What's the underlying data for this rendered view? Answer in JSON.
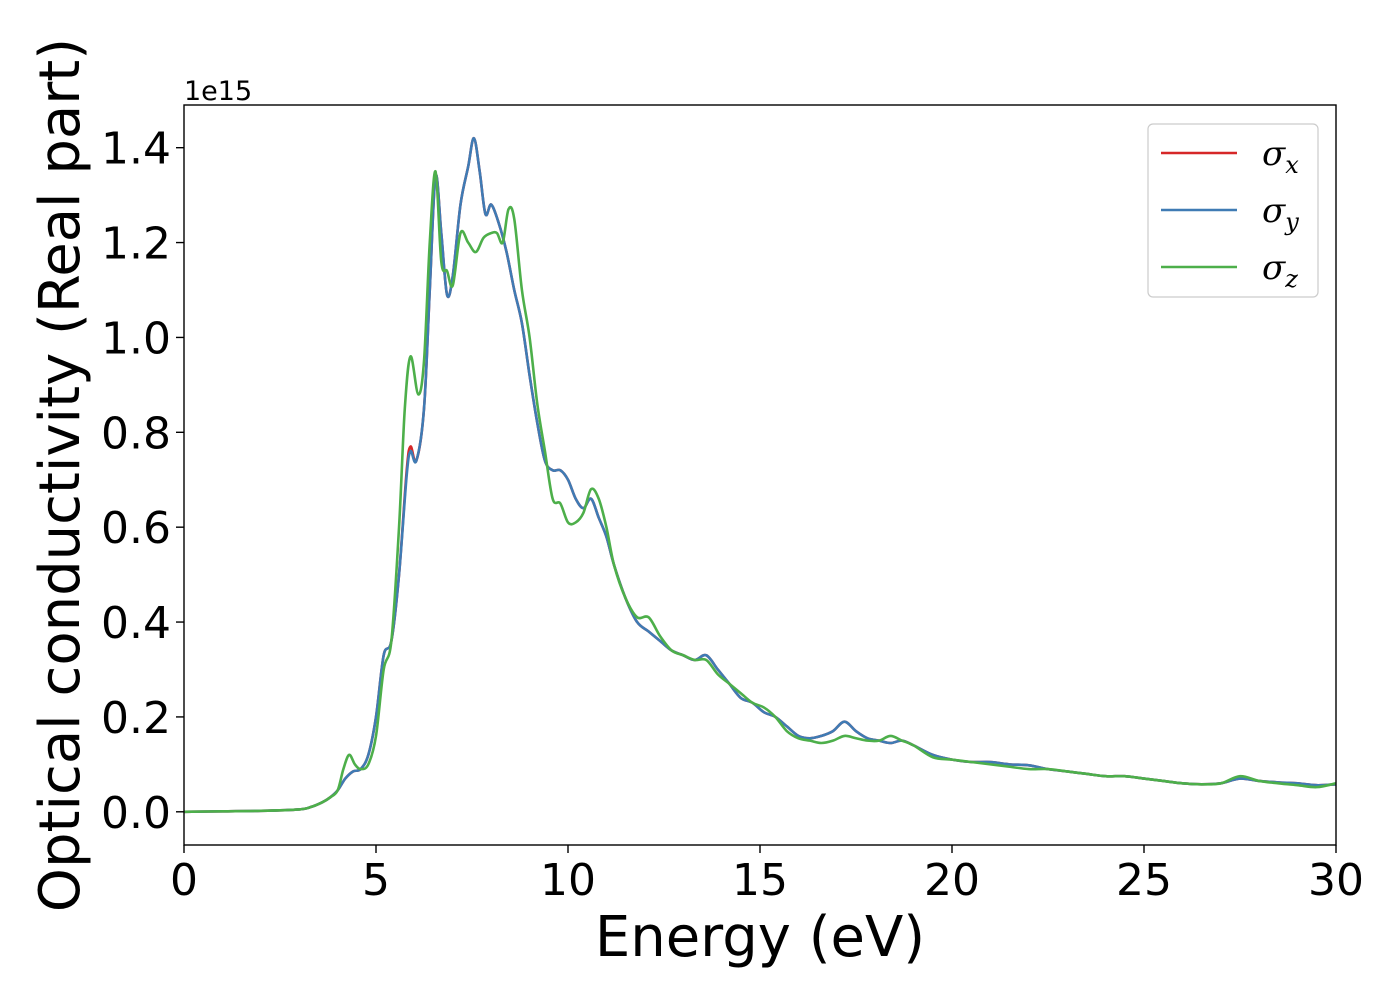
{
  "chart_data": {
    "type": "line",
    "xlabel": "Energy (eV)",
    "ylabel": "Optical conductivity (Real part)",
    "y_offset_label": "1e15",
    "xlim": [
      0,
      30
    ],
    "ylim": [
      -0.07,
      1.49
    ],
    "xticks": [
      0,
      5,
      10,
      15,
      20,
      25,
      30
    ],
    "yticks": [
      0.0,
      0.2,
      0.4,
      0.6,
      0.8,
      1.0,
      1.2,
      1.4
    ],
    "ytick_labels": [
      "0.0",
      "0.2",
      "0.4",
      "0.6",
      "0.8",
      "1.0",
      "1.2",
      "1.4"
    ],
    "grid": false,
    "legend_position": "top-right",
    "series": [
      {
        "name": "σx",
        "legend_main": "σ",
        "legend_sub": "x",
        "color": "#d62728",
        "x": [
          0,
          1,
          2,
          3,
          3.3,
          3.6,
          3.8,
          4.0,
          4.2,
          4.4,
          4.6,
          4.8,
          5.0,
          5.2,
          5.4,
          5.6,
          5.8,
          5.9,
          6.05,
          6.25,
          6.4,
          6.55,
          6.7,
          6.85,
          7.0,
          7.2,
          7.4,
          7.55,
          7.7,
          7.85,
          8.0,
          8.2,
          8.4,
          8.6,
          8.8,
          9.0,
          9.2,
          9.4,
          9.6,
          9.8,
          10.0,
          10.2,
          10.4,
          10.6,
          10.8,
          11.0,
          11.2,
          11.5,
          11.8,
          12.1,
          12.4,
          12.7,
          13.0,
          13.3,
          13.6,
          13.9,
          14.2,
          14.5,
          14.8,
          15.1,
          15.4,
          15.7,
          16.0,
          16.3,
          16.6,
          16.9,
          17.2,
          17.5,
          17.8,
          18.1,
          18.4,
          18.7,
          19.0,
          19.5,
          20.0,
          20.5,
          21.0,
          21.5,
          22.0,
          22.5,
          23.0,
          23.5,
          24.0,
          24.5,
          25.0,
          25.5,
          26.0,
          26.5,
          27.0,
          27.5,
          28.0,
          28.5,
          29.0,
          29.5,
          30.0
        ],
        "y": [
          0,
          0.001,
          0.002,
          0.005,
          0.01,
          0.02,
          0.03,
          0.045,
          0.07,
          0.085,
          0.09,
          0.12,
          0.2,
          0.33,
          0.36,
          0.5,
          0.72,
          0.77,
          0.74,
          0.85,
          1.1,
          1.34,
          1.22,
          1.09,
          1.13,
          1.28,
          1.36,
          1.42,
          1.35,
          1.26,
          1.28,
          1.24,
          1.18,
          1.1,
          1.03,
          0.92,
          0.82,
          0.74,
          0.72,
          0.72,
          0.7,
          0.66,
          0.64,
          0.66,
          0.62,
          0.58,
          0.52,
          0.45,
          0.4,
          0.38,
          0.36,
          0.34,
          0.33,
          0.32,
          0.33,
          0.3,
          0.27,
          0.24,
          0.23,
          0.21,
          0.2,
          0.18,
          0.16,
          0.155,
          0.16,
          0.17,
          0.19,
          0.17,
          0.155,
          0.15,
          0.145,
          0.15,
          0.14,
          0.12,
          0.11,
          0.105,
          0.105,
          0.1,
          0.098,
          0.09,
          0.085,
          0.08,
          0.075,
          0.075,
          0.07,
          0.065,
          0.06,
          0.058,
          0.06,
          0.07,
          0.065,
          0.062,
          0.06,
          0.056,
          0.058
        ]
      },
      {
        "name": "σy",
        "legend_main": "σ",
        "legend_sub": "y",
        "color": "#3f7bb4",
        "x": [
          0,
          1,
          2,
          3,
          3.3,
          3.6,
          3.8,
          4.0,
          4.2,
          4.4,
          4.6,
          4.8,
          5.0,
          5.2,
          5.4,
          5.6,
          5.8,
          5.9,
          6.05,
          6.25,
          6.4,
          6.55,
          6.7,
          6.85,
          7.0,
          7.2,
          7.4,
          7.55,
          7.7,
          7.85,
          8.0,
          8.2,
          8.4,
          8.6,
          8.8,
          9.0,
          9.2,
          9.4,
          9.6,
          9.8,
          10.0,
          10.2,
          10.4,
          10.6,
          10.8,
          11.0,
          11.2,
          11.5,
          11.8,
          12.1,
          12.4,
          12.7,
          13.0,
          13.3,
          13.6,
          13.9,
          14.2,
          14.5,
          14.8,
          15.1,
          15.4,
          15.7,
          16.0,
          16.3,
          16.6,
          16.9,
          17.2,
          17.5,
          17.8,
          18.1,
          18.4,
          18.7,
          19.0,
          19.5,
          20.0,
          20.5,
          21.0,
          21.5,
          22.0,
          22.5,
          23.0,
          23.5,
          24.0,
          24.5,
          25.0,
          25.5,
          26.0,
          26.5,
          27.0,
          27.5,
          28.0,
          28.5,
          29.0,
          29.5,
          30.0
        ],
        "y": [
          0,
          0.001,
          0.002,
          0.005,
          0.01,
          0.02,
          0.03,
          0.045,
          0.07,
          0.085,
          0.09,
          0.12,
          0.2,
          0.33,
          0.36,
          0.5,
          0.71,
          0.76,
          0.74,
          0.85,
          1.1,
          1.34,
          1.22,
          1.09,
          1.13,
          1.28,
          1.36,
          1.42,
          1.35,
          1.26,
          1.28,
          1.24,
          1.18,
          1.1,
          1.03,
          0.92,
          0.82,
          0.74,
          0.72,
          0.72,
          0.7,
          0.66,
          0.64,
          0.66,
          0.62,
          0.58,
          0.52,
          0.45,
          0.4,
          0.38,
          0.36,
          0.34,
          0.33,
          0.32,
          0.33,
          0.3,
          0.27,
          0.24,
          0.23,
          0.21,
          0.2,
          0.18,
          0.16,
          0.155,
          0.16,
          0.17,
          0.19,
          0.17,
          0.155,
          0.15,
          0.145,
          0.15,
          0.14,
          0.12,
          0.11,
          0.105,
          0.105,
          0.1,
          0.098,
          0.09,
          0.085,
          0.08,
          0.075,
          0.075,
          0.07,
          0.065,
          0.06,
          0.058,
          0.06,
          0.07,
          0.065,
          0.062,
          0.06,
          0.056,
          0.058
        ]
      },
      {
        "name": "σz",
        "legend_main": "σ",
        "legend_sub": "z",
        "color": "#4daf4a",
        "x": [
          0,
          1,
          2,
          3,
          3.3,
          3.6,
          3.8,
          4.0,
          4.15,
          4.3,
          4.45,
          4.6,
          4.8,
          5.0,
          5.2,
          5.4,
          5.6,
          5.75,
          5.9,
          6.1,
          6.25,
          6.4,
          6.55,
          6.7,
          6.85,
          7.0,
          7.2,
          7.4,
          7.6,
          7.8,
          8.0,
          8.15,
          8.3,
          8.45,
          8.6,
          8.8,
          9.0,
          9.2,
          9.4,
          9.6,
          9.8,
          10.0,
          10.2,
          10.4,
          10.6,
          10.8,
          11.0,
          11.2,
          11.5,
          11.8,
          12.1,
          12.4,
          12.7,
          13.0,
          13.3,
          13.6,
          13.9,
          14.2,
          14.5,
          14.8,
          15.1,
          15.4,
          15.7,
          16.0,
          16.3,
          16.6,
          16.9,
          17.2,
          17.5,
          17.8,
          18.1,
          18.4,
          18.7,
          19.0,
          19.5,
          20.0,
          20.5,
          21.0,
          21.5,
          22.0,
          22.5,
          23.0,
          23.5,
          24.0,
          24.5,
          25.0,
          25.5,
          26.0,
          26.5,
          27.0,
          27.5,
          28.0,
          28.5,
          29.0,
          29.5,
          30.0
        ],
        "y": [
          0,
          0.001,
          0.002,
          0.005,
          0.01,
          0.02,
          0.03,
          0.045,
          0.09,
          0.12,
          0.1,
          0.09,
          0.1,
          0.16,
          0.3,
          0.36,
          0.6,
          0.85,
          0.96,
          0.88,
          0.95,
          1.2,
          1.35,
          1.16,
          1.14,
          1.11,
          1.22,
          1.2,
          1.18,
          1.21,
          1.22,
          1.22,
          1.2,
          1.27,
          1.25,
          1.1,
          1.0,
          0.86,
          0.76,
          0.66,
          0.65,
          0.61,
          0.61,
          0.63,
          0.68,
          0.66,
          0.6,
          0.52,
          0.45,
          0.41,
          0.41,
          0.37,
          0.34,
          0.33,
          0.32,
          0.32,
          0.29,
          0.27,
          0.25,
          0.23,
          0.22,
          0.2,
          0.17,
          0.155,
          0.15,
          0.145,
          0.15,
          0.16,
          0.155,
          0.15,
          0.15,
          0.16,
          0.15,
          0.14,
          0.115,
          0.11,
          0.105,
          0.1,
          0.095,
          0.09,
          0.09,
          0.085,
          0.08,
          0.075,
          0.075,
          0.07,
          0.065,
          0.06,
          0.058,
          0.06,
          0.075,
          0.065,
          0.06,
          0.056,
          0.052,
          0.06
        ]
      }
    ]
  }
}
